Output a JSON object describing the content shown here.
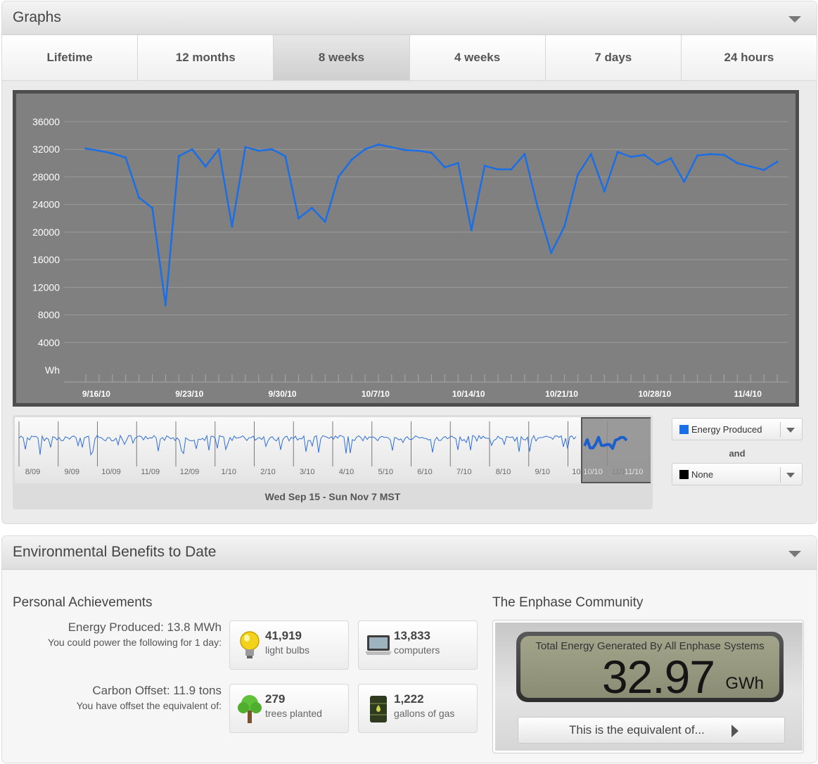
{
  "graphs_panel": {
    "title": "Graphs",
    "tabs": [
      {
        "label": "Lifetime",
        "active": false
      },
      {
        "label": "12 months",
        "active": false
      },
      {
        "label": "8 weeks",
        "active": true
      },
      {
        "label": "4 weeks",
        "active": false
      },
      {
        "label": "7 days",
        "active": false
      },
      {
        "label": "24 hours",
        "active": false
      }
    ],
    "navigator": {
      "labels": [
        "8/09",
        "9/09",
        "10/09",
        "11/09",
        "12/09",
        "1/10",
        "2/10",
        "3/10",
        "4/10",
        "5/10",
        "6/10",
        "7/10",
        "8/10",
        "9/10",
        "10/10",
        "11/10"
      ],
      "range_caption": "Wed Sep 15 - Sun Nov 7 MST"
    },
    "series_selectors": {
      "primary": {
        "label": "Energy Produced",
        "color": "#1a6ee6"
      },
      "joiner": "and",
      "secondary": {
        "label": "None",
        "color": "#000000"
      }
    }
  },
  "chart_data": {
    "type": "line",
    "title": "",
    "xlabel": "",
    "ylabel": "",
    "unit_label": "Wh",
    "ylim": [
      0,
      36000
    ],
    "yticks": [
      36000,
      32000,
      28000,
      24000,
      20000,
      16000,
      12000,
      8000,
      4000
    ],
    "x_tick_labels": [
      "9/16/10",
      "9/23/10",
      "9/30/10",
      "10/7/10",
      "10/14/10",
      "10/21/10",
      "10/28/10",
      "11/4/10"
    ],
    "x_start": "9/15/10",
    "grid": true,
    "line_color": "#1a6ee6",
    "background": "#808080",
    "series": [
      {
        "name": "Energy Produced",
        "values": [
          32100,
          31800,
          31400,
          30800,
          25000,
          23500,
          9400,
          31000,
          32000,
          29500,
          32000,
          20800,
          32300,
          31800,
          32000,
          31000,
          22000,
          23500,
          21500,
          28000,
          30500,
          32000,
          32700,
          32300,
          31900,
          31800,
          31500,
          29400,
          30000,
          20300,
          29600,
          29100,
          29100,
          31300,
          23500,
          17000,
          20800,
          28300,
          31300,
          25900,
          31600,
          30900,
          31200,
          29800,
          30700,
          27300,
          31100,
          31300,
          31200,
          30000,
          29500,
          29000,
          30200
        ]
      }
    ]
  },
  "environment_panel": {
    "title": "Environmental Benefits to Date",
    "personal": {
      "heading": "Personal Achievements",
      "energy_line": "Energy Produced: 13.8 MWh",
      "energy_sub": "You could power the following for 1 day:",
      "carbon_line": "Carbon Offset: 11.9 tons",
      "carbon_sub": "You have offset the equivalent of:",
      "cards": [
        {
          "value": "41,919",
          "unit": "light bulbs",
          "icon": "light-bulb-icon"
        },
        {
          "value": "13,833",
          "unit": "computers",
          "icon": "computer-icon"
        },
        {
          "value": "279",
          "unit": "trees planted",
          "icon": "tree-icon"
        },
        {
          "value": "1,222",
          "unit": "gallons of gas",
          "icon": "gas-barrel-icon"
        }
      ]
    },
    "community": {
      "heading": "The Enphase Community",
      "lcd_title": "Total Energy Generated By All Enphase Systems",
      "lcd_value": "32.97",
      "lcd_unit": "GWh",
      "equivalent_button": "This is the equivalent of..."
    }
  }
}
